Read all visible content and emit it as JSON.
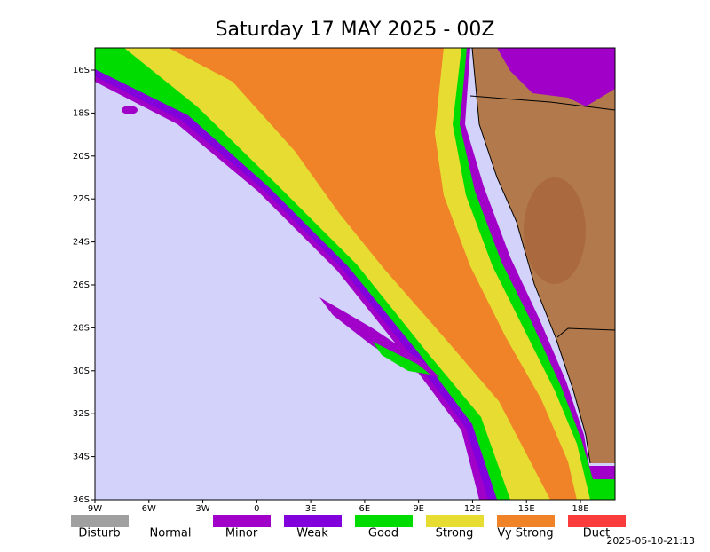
{
  "title": "Saturday 17 MAY 2025 - 00Z",
  "map": {
    "lat_labels": [
      "16S",
      "18S",
      "20S",
      "22S",
      "24S",
      "26S",
      "28S",
      "30S",
      "32S",
      "34S",
      "36S"
    ],
    "lon_labels": [
      "9W",
      "6W",
      "3W",
      "0",
      "3E",
      "6E",
      "9E",
      "12E",
      "15E",
      "18E"
    ]
  },
  "legend": [
    {
      "label": "Disturb",
      "color": "#a0a0a0"
    },
    {
      "label": "Normal",
      "color": null
    },
    {
      "label": "Minor",
      "color": "#a000c8"
    },
    {
      "label": "Weak",
      "color": "#8200dc"
    },
    {
      "label": "Good",
      "color": "#00dc00"
    },
    {
      "label": "Strong",
      "color": "#e6dc32"
    },
    {
      "label": "Vy Strong",
      "color": "#f08228"
    },
    {
      "label": "Duct",
      "color": "#fa3c3c"
    }
  ],
  "timestamp": "2025-05-10-21:13"
}
